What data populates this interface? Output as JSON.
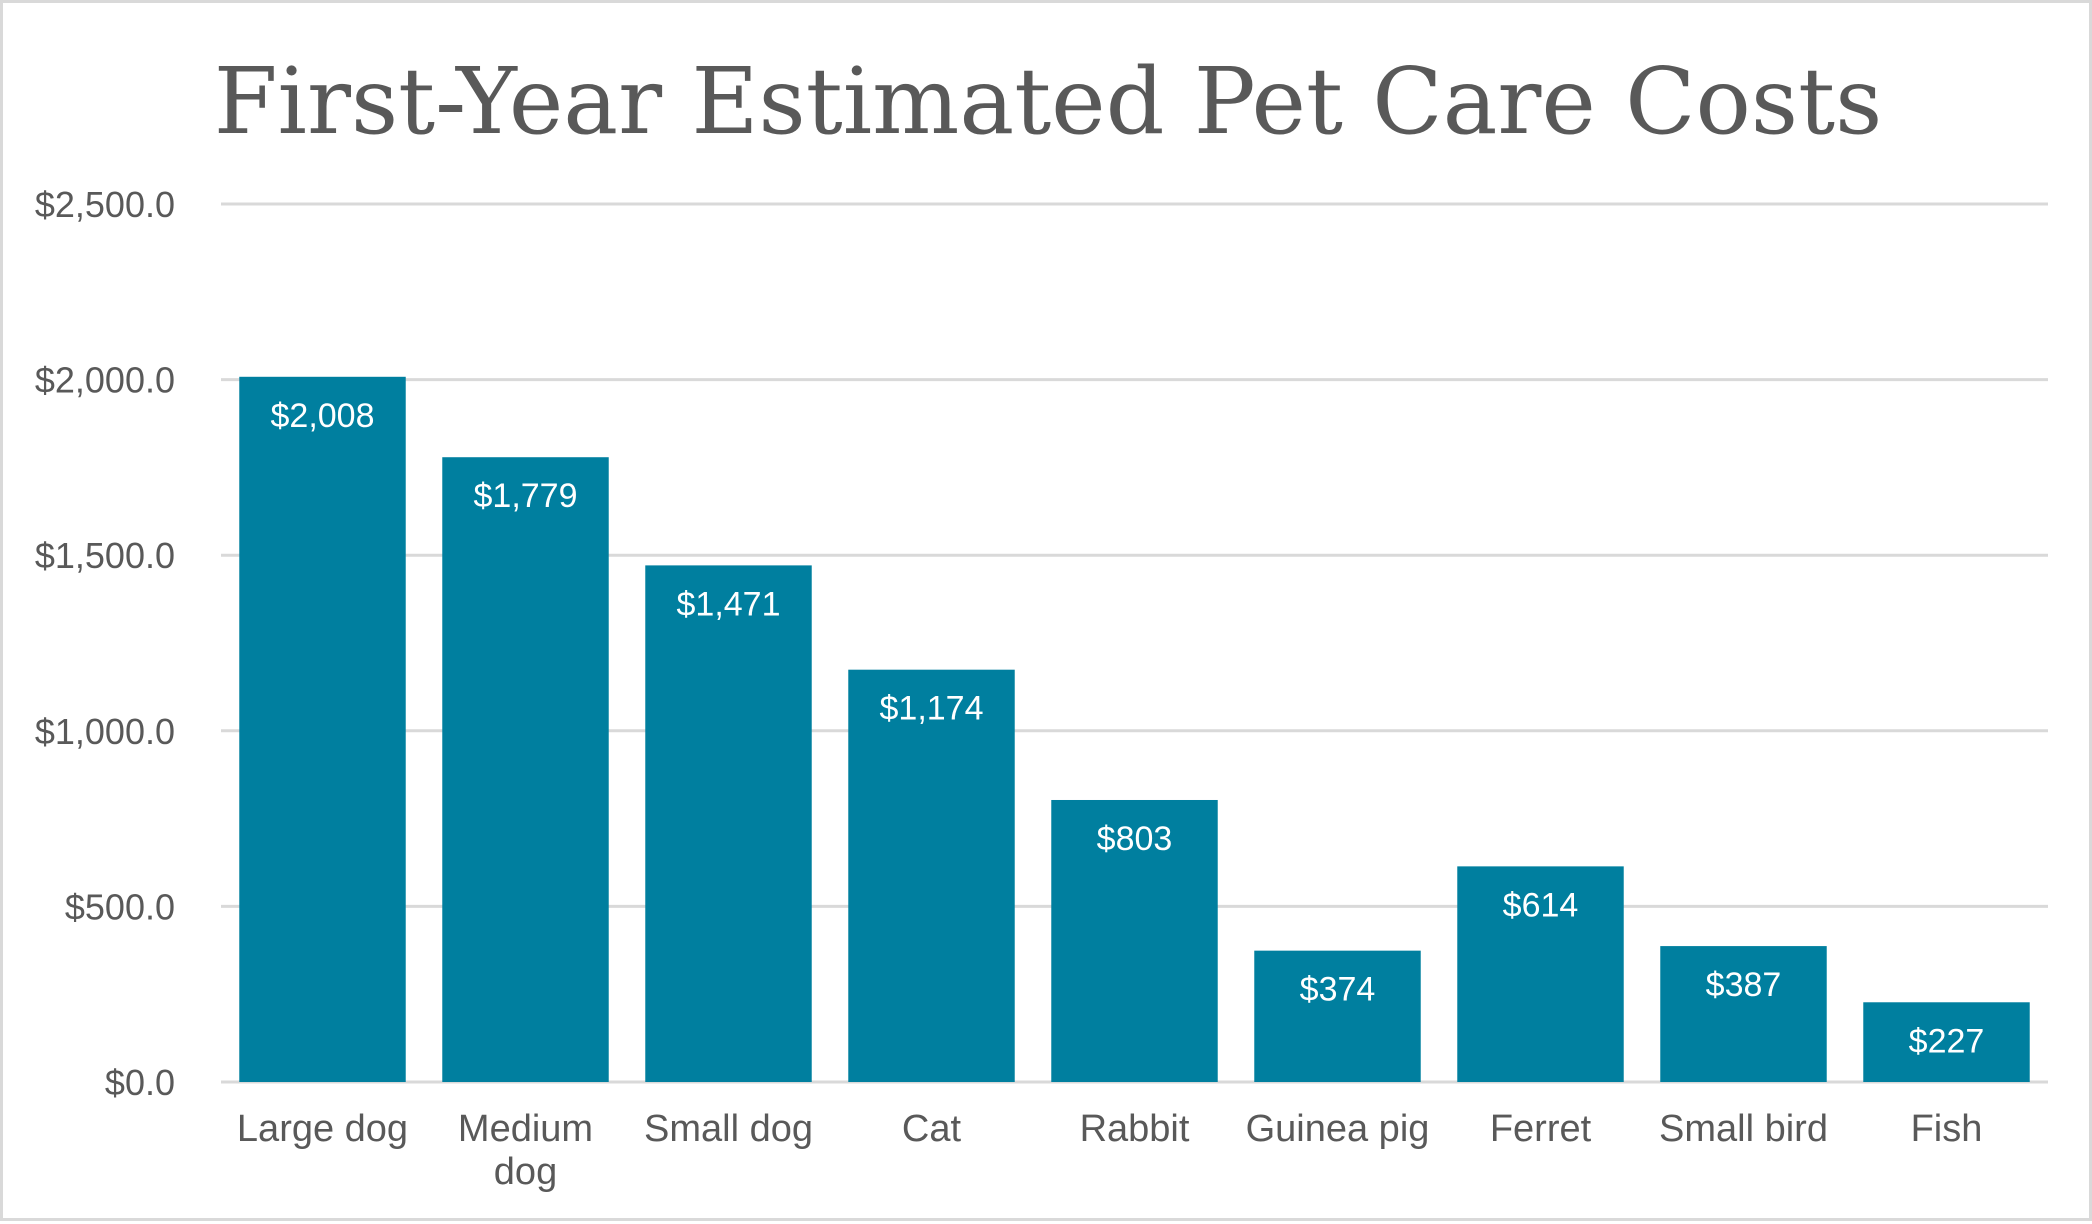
{
  "chart_data": {
    "type": "bar",
    "title": "First-Year Estimated Pet Care Costs",
    "xlabel": "",
    "ylabel": "",
    "categories": [
      "Large dog",
      "Medium dog",
      "Small dog",
      "Cat",
      "Rabbit",
      "Guinea pig",
      "Ferret",
      "Small bird",
      "Fish"
    ],
    "category_lines": [
      [
        "Large dog"
      ],
      [
        "Medium",
        "dog"
      ],
      [
        "Small dog"
      ],
      [
        "Cat"
      ],
      [
        "Rabbit"
      ],
      [
        "Guinea pig"
      ],
      [
        "Ferret"
      ],
      [
        "Small bird"
      ],
      [
        "Fish"
      ]
    ],
    "values": [
      2008,
      1779,
      1471,
      1174,
      803,
      374,
      614,
      387,
      227
    ],
    "data_labels": [
      "$2,008",
      "$1,779",
      "$1,471",
      "$1,174",
      "$803",
      "$374",
      "$614",
      "$387",
      "$227"
    ],
    "ylim": [
      0,
      2500
    ],
    "yticks": [
      0,
      500,
      1000,
      1500,
      2000,
      2500
    ],
    "ytick_labels": [
      "$0.0",
      "$500.0",
      "$1,000.0",
      "$1,500.0",
      "$2,000.0",
      "$2,500.0"
    ],
    "grid": true,
    "legend": "none",
    "colors": {
      "bar": "#007f9f",
      "grid": "#d9d9d9",
      "text": "#595959",
      "label": "#ffffff"
    }
  }
}
